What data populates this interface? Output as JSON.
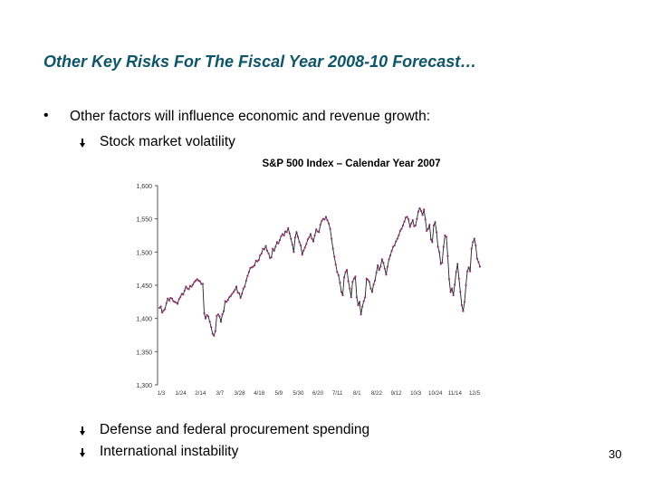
{
  "slide": {
    "title": "Other Key Risks For The Fiscal Year 2008-10 Forecast…",
    "bullet_main": "Other factors will influence economic and revenue growth:",
    "bullet_main_symbol": "•",
    "sub_bullets": [
      "Stock market volatility",
      "Defense and federal procurement spending",
      "International instability"
    ],
    "page_number": "30"
  },
  "chart_data": {
    "type": "line",
    "title": "S&P 500 Index – Calendar Year 2007",
    "xlabel": "",
    "ylabel": "",
    "ylim": [
      1300,
      1600
    ],
    "yticks": [
      "1,600",
      "1,550",
      "1,500",
      "1,450",
      "1,400",
      "1,350",
      "1,300"
    ],
    "xticks": [
      "1/3",
      "1/24",
      "2/14",
      "3/7",
      "3/28",
      "4/18",
      "5/9",
      "5/30",
      "6/20",
      "7/11",
      "8/1",
      "8/22",
      "9/12",
      "10/3",
      "10/24",
      "11/14",
      "12/5"
    ],
    "series": [
      {
        "name": "S&P 500 Index",
        "color": "#222222",
        "marker_color": "#8c2f6e",
        "values": [
          1416,
          1418,
          1409,
          1412,
          1414,
          1423,
          1430,
          1427,
          1431,
          1430,
          1426,
          1425,
          1424,
          1422,
          1429,
          1432,
          1437,
          1436,
          1442,
          1448,
          1445,
          1444,
          1449,
          1448,
          1451,
          1455,
          1457,
          1459,
          1457,
          1456,
          1452,
          1452,
          1408,
          1400,
          1405,
          1403,
          1395,
          1387,
          1377,
          1374,
          1381,
          1404,
          1406,
          1403,
          1395,
          1406,
          1411,
          1426,
          1425,
          1428,
          1432,
          1434,
          1437,
          1440,
          1443,
          1448,
          1439,
          1438,
          1431,
          1437,
          1445,
          1448,
          1457,
          1464,
          1470,
          1476,
          1477,
          1478,
          1480,
          1487,
          1486,
          1488,
          1495,
          1498,
          1505,
          1504,
          1509,
          1502,
          1498,
          1491,
          1492,
          1505,
          1502,
          1508,
          1515,
          1513,
          1518,
          1524,
          1527,
          1525,
          1531,
          1530,
          1536,
          1528,
          1520,
          1511,
          1500,
          1522,
          1530,
          1523,
          1515,
          1510,
          1496,
          1502,
          1507,
          1512,
          1519,
          1522,
          1527,
          1520,
          1516,
          1525,
          1534,
          1531,
          1530,
          1541,
          1547,
          1550,
          1549,
          1553,
          1548,
          1543,
          1535,
          1520,
          1505,
          1493,
          1481,
          1470,
          1465,
          1454,
          1440,
          1435,
          1462,
          1470,
          1473,
          1456,
          1445,
          1432,
          1455,
          1460,
          1463,
          1432,
          1420,
          1425,
          1406,
          1418,
          1426,
          1432,
          1460,
          1458,
          1455,
          1445,
          1440,
          1451,
          1457,
          1469,
          1480,
          1473,
          1478,
          1489,
          1484,
          1475,
          1466,
          1478,
          1489,
          1495,
          1502,
          1508,
          1510,
          1516,
          1520,
          1525,
          1532,
          1535,
          1540,
          1546,
          1552,
          1553,
          1549,
          1538,
          1543,
          1548,
          1539,
          1540,
          1550,
          1561,
          1566,
          1562,
          1556,
          1564,
          1549,
          1532,
          1535,
          1541,
          1519,
          1515,
          1540,
          1545,
          1530,
          1508,
          1500,
          1482,
          1484,
          1508,
          1525,
          1523,
          1494,
          1459,
          1440,
          1445,
          1435,
          1451,
          1470,
          1482,
          1460,
          1440,
          1420,
          1411,
          1425,
          1450,
          1471,
          1477,
          1471,
          1505,
          1515,
          1520,
          1510,
          1490,
          1485,
          1478
        ]
      }
    ]
  }
}
